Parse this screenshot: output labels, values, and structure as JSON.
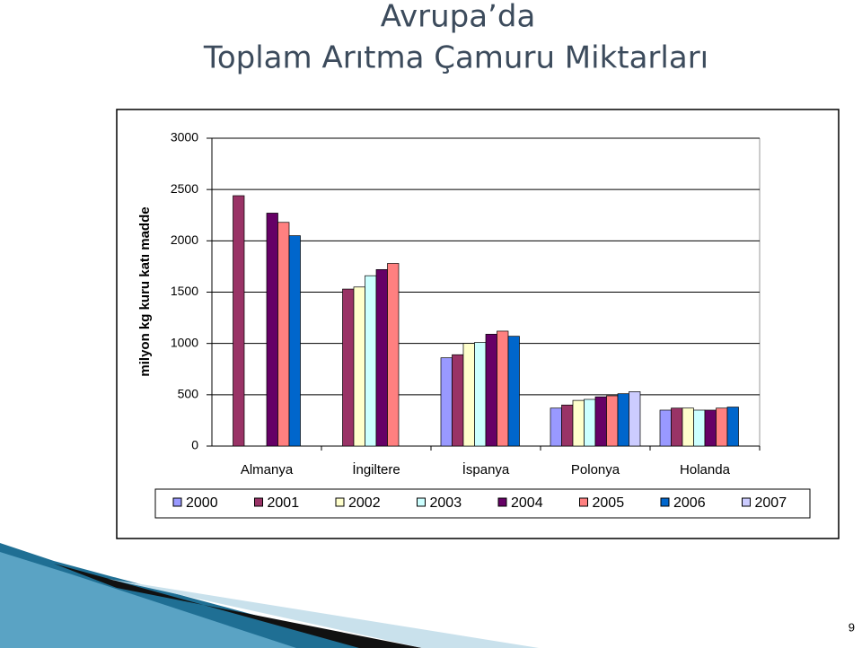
{
  "chart_data": {
    "type": "bar",
    "title": "Avrupa’da",
    "subtitle": "Toplam Arıtma Çamuru Miktarları",
    "y_label": "milyon kg kuru katı madde",
    "categories": [
      "Almanya",
      "İngiltere",
      "İspanya",
      "Polonya",
      "Holanda"
    ],
    "series": [
      {
        "name": "2000",
        "color": "#9999ff",
        "values": [
          null,
          null,
          860,
          370,
          350
        ]
      },
      {
        "name": "2001",
        "color": "#993366",
        "values": [
          2440,
          1530,
          890,
          400,
          370
        ]
      },
      {
        "name": "2002",
        "color": "#ffffcc",
        "values": [
          null,
          1550,
          1000,
          445,
          370
        ]
      },
      {
        "name": "2003",
        "color": "#ccffff",
        "values": [
          null,
          1660,
          1010,
          455,
          350
        ]
      },
      {
        "name": "2004",
        "color": "#660066",
        "values": [
          2270,
          1720,
          1090,
          480,
          350
        ]
      },
      {
        "name": "2005",
        "color": "#ff8080",
        "values": [
          2180,
          1780,
          1120,
          490,
          370
        ]
      },
      {
        "name": "2006",
        "color": "#0066cc",
        "values": [
          2050,
          null,
          1070,
          510,
          380
        ]
      },
      {
        "name": "2007",
        "color": "#ccccff",
        "values": [
          null,
          null,
          null,
          530,
          null
        ]
      }
    ],
    "ylim": [
      0,
      3000
    ],
    "yticks": [
      0,
      500,
      1000,
      1500,
      2000,
      2500,
      3000
    ],
    "grid": true
  },
  "page_number": "9"
}
